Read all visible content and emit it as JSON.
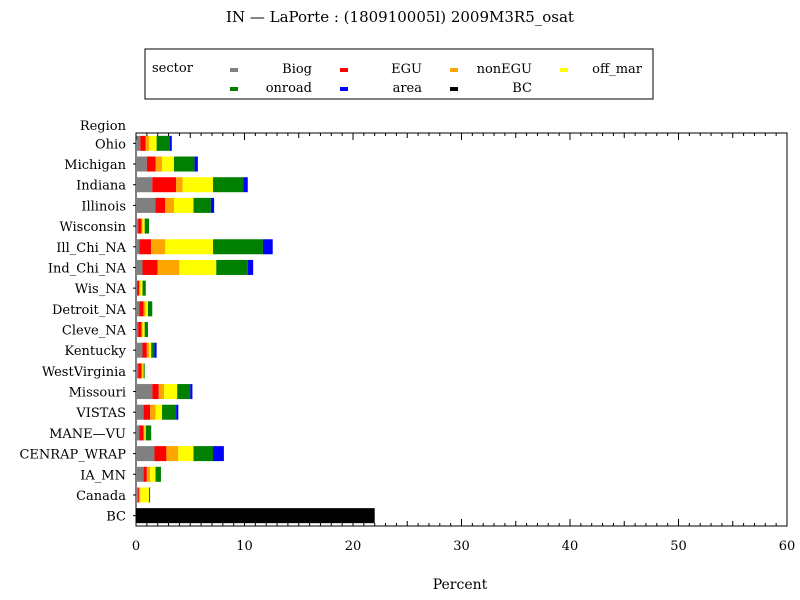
{
  "chart_data": {
    "type": "bar",
    "orientation": "horizontal",
    "stacked": true,
    "title": "IN  —  LaPorte : (180910005l)  2009M3R5_osat",
    "xlabel": "Percent",
    "ylabel": "Region",
    "xlim": [
      0,
      60
    ],
    "x_ticks": [
      0,
      10,
      20,
      30,
      40,
      50,
      60
    ],
    "legend": {
      "title": "sector",
      "placement": "top",
      "entries": [
        {
          "name": "Biog",
          "color": "#808080"
        },
        {
          "name": "EGU",
          "color": "#ff0000"
        },
        {
          "name": "nonEGU",
          "color": "#ffa500"
        },
        {
          "name": "off_mar",
          "color": "#ffff00"
        },
        {
          "name": "onroad",
          "color": "#008000"
        },
        {
          "name": "area",
          "color": "#0000ff"
        },
        {
          "name": "BC",
          "color": "#000000"
        }
      ]
    },
    "categories": [
      "Ohio",
      "Michigan",
      "Indiana",
      "Illinois",
      "Wisconsin",
      "Ill_Chi_NA",
      "Ind_Chi_NA",
      "Wis_NA",
      "Detroit_NA",
      "Cleve_NA",
      "Kentucky",
      "WestVirginia",
      "Missouri",
      "VISTAS",
      "MANE—VU",
      "CENRAP_WRAP",
      "IA_MN",
      "Canada",
      "BC"
    ],
    "series": [
      {
        "name": "Biog",
        "color": "#808080",
        "values": [
          0.4,
          1.0,
          1.5,
          1.8,
          0.2,
          0.3,
          0.6,
          0.1,
          0.3,
          0.2,
          0.6,
          0.2,
          1.5,
          0.7,
          0.3,
          1.7,
          0.7,
          0.2,
          0
        ]
      },
      {
        "name": "EGU",
        "color": "#ff0000",
        "values": [
          0.5,
          0.8,
          2.2,
          0.9,
          0.3,
          1.1,
          1.4,
          0.2,
          0.4,
          0.3,
          0.4,
          0.3,
          0.6,
          0.6,
          0.4,
          1.1,
          0.3,
          0.1,
          0
        ]
      },
      {
        "name": "nonEGU",
        "color": "#ffa500",
        "values": [
          0.3,
          0.6,
          0.6,
          0.8,
          0.1,
          1.3,
          2.0,
          0.1,
          0.2,
          0.1,
          0.2,
          0.1,
          0.5,
          0.5,
          0.1,
          1.1,
          0.3,
          0.1,
          0
        ]
      },
      {
        "name": "off_mar",
        "color": "#ffff00",
        "values": [
          0.7,
          1.1,
          2.8,
          1.8,
          0.2,
          4.4,
          3.4,
          0.2,
          0.2,
          0.2,
          0.2,
          0.1,
          1.2,
          0.6,
          0.1,
          1.4,
          0.5,
          0.8,
          0
        ]
      },
      {
        "name": "onroad",
        "color": "#008000",
        "values": [
          1.2,
          1.9,
          2.8,
          1.6,
          0.4,
          4.6,
          2.9,
          0.3,
          0.4,
          0.3,
          0.3,
          0.1,
          1.2,
          1.3,
          0.5,
          1.8,
          0.5,
          0.1,
          0
        ]
      },
      {
        "name": "area",
        "color": "#0000ff",
        "values": [
          0.2,
          0.3,
          0.4,
          0.3,
          0.0,
          0.9,
          0.5,
          0.0,
          0.0,
          0.0,
          0.2,
          0.0,
          0.2,
          0.2,
          0.0,
          1.0,
          0.0,
          0.0,
          0
        ]
      },
      {
        "name": "BC",
        "color": "#000000",
        "values": [
          0,
          0,
          0,
          0,
          0,
          0,
          0,
          0,
          0,
          0,
          0,
          0,
          0,
          0,
          0,
          0,
          0,
          0,
          22.0
        ]
      }
    ],
    "grid": false
  }
}
